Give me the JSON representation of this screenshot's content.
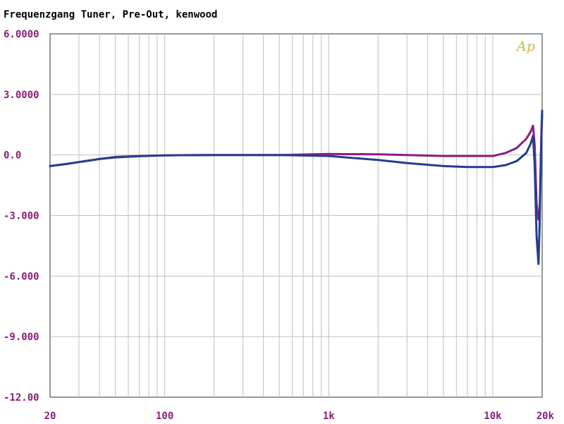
{
  "chart_data": {
    "type": "line",
    "title": "Frequenzgang Tuner, Pre-Out, kenwood",
    "logo_text": "Ap",
    "xscale": "log",
    "xlim": [
      20,
      20000
    ],
    "ylim": [
      -12,
      6
    ],
    "grid": true,
    "y_ticks": [
      6,
      3,
      0,
      -3,
      -6,
      -9,
      -12
    ],
    "y_tick_labels": [
      "6.0000",
      "3.0000",
      "0.0",
      "-3.000",
      "-6.000",
      "-9.000",
      "-12.00"
    ],
    "x_ticks": [
      20,
      100,
      1000,
      10000,
      20000
    ],
    "x_tick_labels": [
      "20",
      "100",
      "1k",
      "10k",
      "20k"
    ],
    "colors": {
      "grid": "#c0c0c0",
      "axis_text": "#8a1f77",
      "frame": "#555555"
    },
    "series": [
      {
        "color": "#8e1b86",
        "x": [
          20,
          25,
          30,
          40,
          50,
          70,
          100,
          200,
          500,
          1000,
          2000,
          3000,
          5000,
          7000,
          10000,
          12000,
          14000,
          16000,
          17000,
          17600,
          18000,
          18500,
          19000,
          19300,
          19600,
          19800,
          20000
        ],
        "y": [
          -0.55,
          -0.45,
          -0.35,
          -0.2,
          -0.1,
          -0.05,
          -0.02,
          0,
          0,
          0.05,
          0.03,
          0,
          -0.05,
          -0.05,
          -0.05,
          0.1,
          0.35,
          0.8,
          1.15,
          1.45,
          0.5,
          -2.4,
          -3.2,
          -2.8,
          -0.5,
          1.0,
          2.0
        ]
      },
      {
        "color": "#243e8c",
        "x": [
          20,
          25,
          30,
          40,
          50,
          70,
          100,
          200,
          500,
          1000,
          2000,
          3000,
          5000,
          7000,
          10000,
          12000,
          14000,
          16000,
          17000,
          17600,
          18000,
          18500,
          19000,
          19300,
          19600,
          19800,
          20000
        ],
        "y": [
          -0.55,
          -0.45,
          -0.35,
          -0.2,
          -0.12,
          -0.06,
          -0.02,
          0,
          0,
          -0.05,
          -0.25,
          -0.4,
          -0.55,
          -0.6,
          -0.6,
          -0.5,
          -0.3,
          0.1,
          0.55,
          0.95,
          -0.5,
          -4.0,
          -5.4,
          -3.5,
          -0.5,
          1.2,
          2.2
        ]
      }
    ]
  }
}
